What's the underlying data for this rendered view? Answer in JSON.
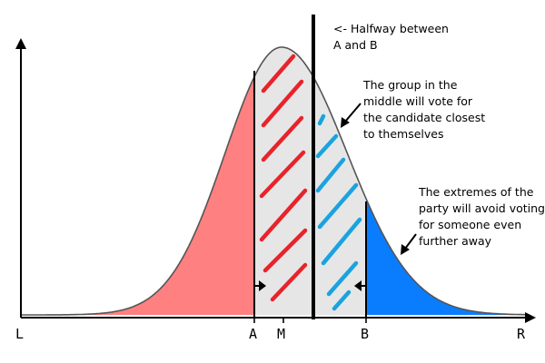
{
  "axis_labels": {
    "left": "L",
    "a": "A",
    "m": "M",
    "b": "B",
    "right": "R"
  },
  "annotations": {
    "halfway": [
      "<- Halfway between",
      "A and B"
    ],
    "middle_group": [
      "The group in the",
      "middle will vote for",
      "the candidate closest",
      "to themselves"
    ],
    "extremes": [
      "The extremes of the",
      "party will avoid voting",
      "for someone even",
      "further away"
    ]
  },
  "colors": {
    "left_region": "#ff8080",
    "right_region": "#0a7dff",
    "middle_fill": "#e6e6e6",
    "red_hatch": "#e8232b",
    "blue_hatch": "#1aa3df",
    "curve": "#555555",
    "axis": "#000000"
  }
}
